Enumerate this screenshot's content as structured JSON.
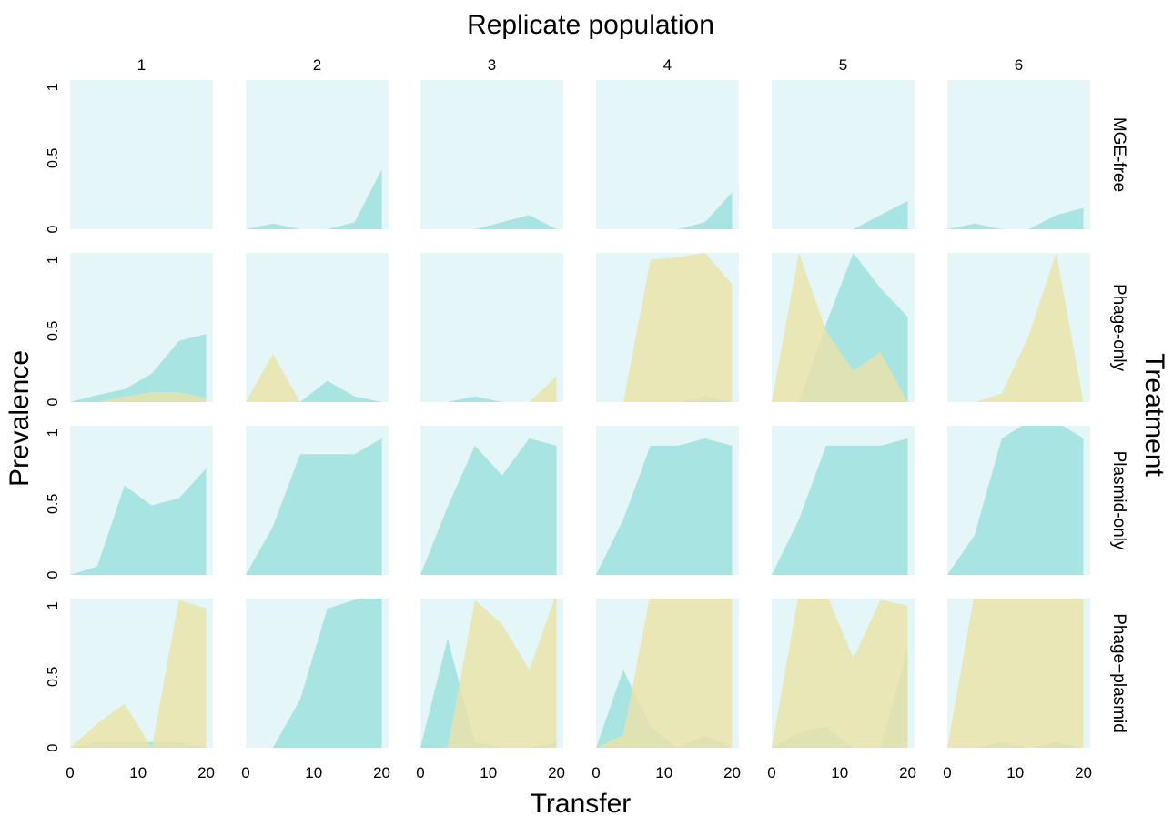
{
  "chart_data": {
    "type": "area",
    "title": "Replicate population",
    "xlabel": "Transfer",
    "ylabel": "Prevalence",
    "right_label": "Treatment",
    "columns": [
      "1",
      "2",
      "3",
      "4",
      "5",
      "6"
    ],
    "rows": [
      "MGE-free",
      "Phage-only",
      "Plasmid-only",
      "Phage−plasmid"
    ],
    "x": [
      0,
      4,
      8,
      12,
      16,
      20
    ],
    "xlim": [
      0,
      21
    ],
    "ylim": [
      0,
      1.05
    ],
    "x_ticks": [
      0,
      10,
      20
    ],
    "y_ticks": [
      0,
      0.5,
      1
    ],
    "y_tick_labels": [
      "0",
      "0.5",
      "1"
    ],
    "grid": false,
    "colors": {
      "panel_background": "#e4f6f7",
      "series_a": "#a8e4e2",
      "series_b": "#ece3a8",
      "overlap": "#b5dfac"
    },
    "series_order": [
      "series_a",
      "series_b"
    ],
    "panels": [
      [
        {
          "series_a": [
            0,
            0,
            0,
            0,
            0,
            0
          ],
          "series_b": [
            0,
            0,
            0,
            0,
            0,
            0
          ]
        },
        {
          "series_a": [
            0,
            0.04,
            0,
            0,
            0.05,
            0.42
          ],
          "series_b": [
            0,
            0,
            0,
            0,
            0,
            0
          ]
        },
        {
          "series_a": [
            0,
            0,
            0,
            0.05,
            0.1,
            0
          ],
          "series_b": [
            0,
            0,
            0,
            0,
            0,
            0
          ]
        },
        {
          "series_a": [
            0,
            0,
            0,
            0,
            0.05,
            0.26
          ],
          "series_b": [
            0,
            0,
            0,
            0,
            0,
            0
          ]
        },
        {
          "series_a": [
            0,
            0,
            0,
            0,
            0.1,
            0.2
          ],
          "series_b": [
            0,
            0,
            0,
            0,
            0,
            0
          ]
        },
        {
          "series_a": [
            0,
            0.04,
            0,
            0,
            0.1,
            0.15
          ],
          "series_b": [
            0,
            0,
            0,
            0,
            0,
            0
          ]
        }
      ],
      [
        {
          "series_a": [
            0,
            0.05,
            0.09,
            0.2,
            0.43,
            0.48
          ],
          "series_b": [
            0,
            0,
            0.04,
            0.07,
            0.07,
            0.03
          ]
        },
        {
          "series_a": [
            0,
            0,
            0,
            0.15,
            0.04,
            0
          ],
          "series_b": [
            0,
            0.34,
            0,
            0,
            0,
            0
          ]
        },
        {
          "series_a": [
            0,
            0,
            0.04,
            0,
            0,
            0
          ],
          "series_b": [
            0,
            0,
            0,
            0,
            0,
            0.18
          ]
        },
        {
          "series_a": [
            0,
            0,
            0,
            0,
            0.04,
            0
          ],
          "series_b": [
            0,
            0,
            1.0,
            1.02,
            1.05,
            0.83
          ]
        },
        {
          "series_a": [
            0,
            0,
            0.55,
            1.05,
            0.8,
            0.6
          ],
          "series_b": [
            0,
            1.05,
            0.5,
            0.22,
            0.35,
            0
          ]
        },
        {
          "series_a": [
            0,
            0,
            0,
            0,
            0,
            0
          ],
          "series_b": [
            0,
            0,
            0.06,
            0.47,
            1.05,
            0
          ]
        }
      ],
      [
        {
          "series_a": [
            0,
            0.06,
            0.63,
            0.49,
            0.54,
            0.75
          ],
          "series_b": [
            0,
            0,
            0,
            0,
            0,
            0
          ]
        },
        {
          "series_a": [
            0,
            0.34,
            0.85,
            0.85,
            0.85,
            0.96
          ],
          "series_b": [
            0,
            0,
            0,
            0,
            0,
            0
          ]
        },
        {
          "series_a": [
            0,
            0.48,
            0.91,
            0.7,
            0.96,
            0.91
          ],
          "series_b": [
            0,
            0,
            0,
            0,
            0,
            0
          ]
        },
        {
          "series_a": [
            0,
            0.39,
            0.91,
            0.91,
            0.96,
            0.91
          ],
          "series_b": [
            0,
            0,
            0,
            0,
            0,
            0
          ]
        },
        {
          "series_a": [
            0,
            0.39,
            0.91,
            0.91,
            0.91,
            0.96
          ],
          "series_b": [
            0,
            0,
            0,
            0,
            0,
            0
          ]
        },
        {
          "series_a": [
            0,
            0.28,
            0.96,
            1.08,
            1.08,
            0.96
          ],
          "series_b": [
            0,
            0,
            0,
            0,
            0,
            0
          ]
        }
      ],
      [
        {
          "series_a": [
            0,
            0.04,
            0.04,
            0.04,
            0.04,
            0
          ],
          "series_b": [
            0,
            0.17,
            0.31,
            0,
            1.04,
            0.98
          ]
        },
        {
          "series_a": [
            0,
            0,
            0.34,
            0.98,
            1.04,
            1.09
          ],
          "series_b": [
            0,
            0,
            0,
            0,
            0,
            0
          ]
        },
        {
          "series_a": [
            0,
            0.77,
            0.04,
            0,
            0,
            0.04
          ],
          "series_b": [
            0,
            0,
            1.04,
            0.87,
            0.55,
            1.09
          ]
        },
        {
          "series_a": [
            0,
            0.55,
            0.15,
            0,
            0.09,
            0
          ],
          "series_b": [
            0,
            0.09,
            1.09,
            1.09,
            1.09,
            1.09
          ]
        },
        {
          "series_a": [
            0,
            0.11,
            0.15,
            0,
            0,
            0.7
          ],
          "series_b": [
            0,
            1.09,
            1.09,
            0.63,
            1.04,
            1.0
          ]
        },
        {
          "series_a": [
            0,
            0,
            0.04,
            0,
            0.04,
            0
          ],
          "series_b": [
            0,
            1.09,
            1.09,
            1.09,
            1.09,
            1.04
          ]
        }
      ]
    ]
  }
}
